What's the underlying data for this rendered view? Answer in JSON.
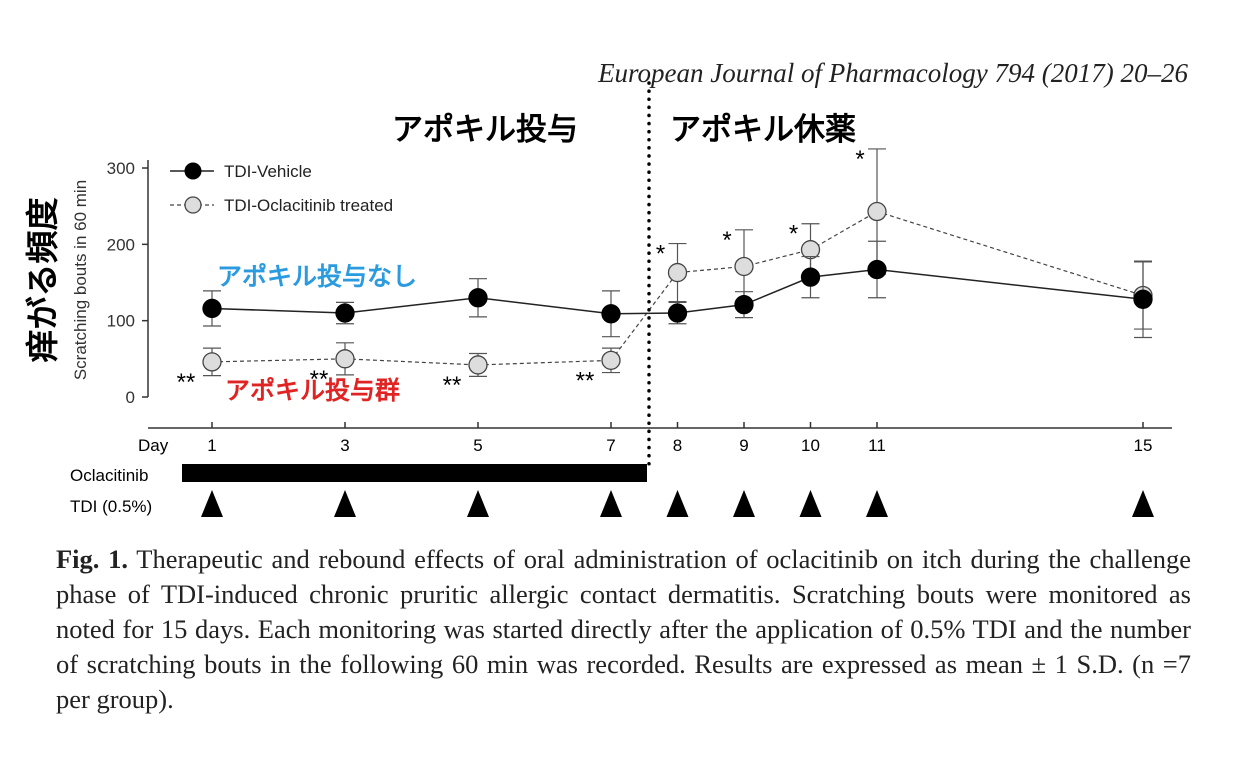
{
  "citation": "European Journal of Pharmacology 794 (2017) 20–26",
  "annotations": {
    "dosing_period": "アポキル投与",
    "withdrawal_period": "アポキル休薬",
    "y_axis_jp": "痒がる頻度",
    "vehicle_jp": "アポキル投与なし",
    "treated_jp": "アポキル投与群"
  },
  "colors": {
    "vehicle_jp": "#2b9be0",
    "treated_jp": "#e02424",
    "vehicle_marker": "#000000",
    "treated_marker": "#dddddd"
  },
  "chart_data": {
    "type": "line",
    "title": "",
    "xlabel": "Day",
    "ylabel": "Scratching bouts in 60 min",
    "ylim": [
      0,
      330
    ],
    "yticks": [
      0,
      100,
      200,
      300
    ],
    "x_ticks": [
      1,
      3,
      5,
      7,
      8,
      9,
      10,
      11,
      15
    ],
    "legend_position": "top-left",
    "series": [
      {
        "name": "TDI-Vehicle",
        "x": [
          1,
          3,
          5,
          7,
          8,
          9,
          10,
          11,
          15
        ],
        "y": [
          116,
          110,
          130,
          109,
          110,
          121,
          157,
          167,
          128
        ],
        "err": [
          23,
          14,
          25,
          30,
          14,
          17,
          27,
          37,
          50
        ]
      },
      {
        "name": "TDI-Oclacitinib treated",
        "x": [
          1,
          3,
          5,
          7,
          8,
          9,
          10,
          11,
          15
        ],
        "y": [
          46,
          50,
          42,
          48,
          163,
          171,
          193,
          243,
          133
        ],
        "err": [
          18,
          21,
          15,
          16,
          38,
          48,
          34,
          82,
          44
        ]
      }
    ],
    "significance": [
      {
        "x": 1,
        "label": "**"
      },
      {
        "x": 3,
        "label": "**"
      },
      {
        "x": 5,
        "label": "**"
      },
      {
        "x": 7,
        "label": "**"
      },
      {
        "x": 8,
        "label": "*"
      },
      {
        "x": 9,
        "label": "*"
      },
      {
        "x": 10,
        "label": "*"
      },
      {
        "x": 11,
        "label": "*"
      }
    ],
    "oclacitinib_label": "Oclacitinib",
    "oclacitinib_days": [
      1,
      7
    ],
    "tdi_label": "TDI (0.5%)",
    "tdi_days": [
      1,
      3,
      5,
      7,
      8,
      9,
      10,
      11,
      15
    ]
  },
  "caption": {
    "fig_label": "Fig. 1.",
    "text": "Therapeutic and rebound effects of oral administration of oclacitinib on itch during the challenge phase of TDI-induced chronic pruritic allergic contact dermatitis. Scratching bouts were monitored as noted for 15 days. Each monitoring was started directly after the application of 0.5% TDI and the number of scratching bouts in the following 60 min was recorded. Results are expressed as mean ± 1 S.D. (n =7 per group)."
  }
}
